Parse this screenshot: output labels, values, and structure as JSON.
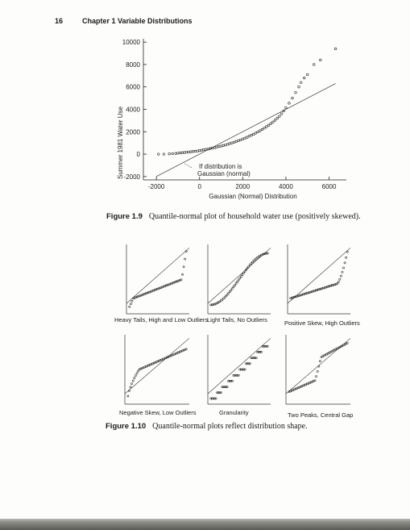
{
  "header": {
    "page_number": "16",
    "chapter": "Chapter 1  Variable Distributions"
  },
  "figure_1_9": {
    "label": "Figure 1.9",
    "caption": "Quantile-normal plot of household water use (positively skewed).",
    "ylabel": "Summer 1981 Water Use",
    "xlabel": "Gaussian (Normal) Distribution",
    "annotation_line1": "If distribution is",
    "annotation_line2": "Gaussian (normal)"
  },
  "figure_1_10": {
    "label": "Figure 1.10",
    "caption": "Quantile-normal plots reflect distribution shape.",
    "panels": [
      {
        "title": "Heavy Tails, High and Low Outliers"
      },
      {
        "title": "Light Tails, No Outliers"
      },
      {
        "title": "Positive Skew, High Outliers"
      },
      {
        "title": "Negative Skew, Low Outliers"
      },
      {
        "title": "Granularity"
      },
      {
        "title": "Two Peaks, Central Gap"
      }
    ]
  },
  "chart_data": [
    {
      "type": "scatter",
      "title": "",
      "xlabel": "Gaussian (Normal) Distribution",
      "ylabel": "Summer 1981 Water Use",
      "xlim": [
        -2600,
        6800
      ],
      "ylim": [
        -2300,
        10300
      ],
      "x_ticks": [
        -2000,
        0,
        2000,
        4000,
        6000
      ],
      "y_ticks": [
        -2000,
        0,
        2000,
        4000,
        6000,
        8000,
        10000
      ],
      "reference_line": {
        "x": [
          -2000,
          6300
        ],
        "y": [
          -2000,
          6300
        ]
      },
      "series": [
        {
          "points": [
            [
              -1900,
              0
            ],
            [
              -1650,
              0
            ],
            [
              -1400,
              20
            ],
            [
              -1250,
              40
            ],
            [
              -1100,
              60
            ],
            [
              -1000,
              90
            ],
            [
              -900,
              110
            ],
            [
              -800,
              130
            ],
            [
              -700,
              150
            ],
            [
              -600,
              170
            ],
            [
              -500,
              190
            ],
            [
              -400,
              210
            ],
            [
              -300,
              240
            ],
            [
              -200,
              260
            ],
            [
              -100,
              280
            ],
            [
              0,
              320
            ],
            [
              100,
              350
            ],
            [
              200,
              390
            ],
            [
              300,
              420
            ],
            [
              400,
              460
            ],
            [
              500,
              500
            ],
            [
              600,
              540
            ],
            [
              700,
              580
            ],
            [
              800,
              630
            ],
            [
              900,
              680
            ],
            [
              1000,
              720
            ],
            [
              1100,
              770
            ],
            [
              1200,
              820
            ],
            [
              1300,
              880
            ],
            [
              1400,
              940
            ],
            [
              1500,
              1000
            ],
            [
              1600,
              1060
            ],
            [
              1700,
              1130
            ],
            [
              1800,
              1200
            ],
            [
              1900,
              1270
            ],
            [
              2000,
              1350
            ],
            [
              2100,
              1430
            ],
            [
              2200,
              1510
            ],
            [
              2300,
              1600
            ],
            [
              2400,
              1690
            ],
            [
              2500,
              1780
            ],
            [
              2600,
              1880
            ],
            [
              2700,
              1980
            ],
            [
              2800,
              2090
            ],
            [
              2900,
              2200
            ],
            [
              3000,
              2320
            ],
            [
              3100,
              2450
            ],
            [
              3200,
              2580
            ],
            [
              3300,
              2720
            ],
            [
              3400,
              2870
            ],
            [
              3500,
              3030
            ],
            [
              3600,
              3200
            ],
            [
              3700,
              3380
            ],
            [
              3800,
              3600
            ],
            [
              3900,
              3850
            ],
            [
              4000,
              4150
            ],
            [
              4150,
              4550
            ],
            [
              4300,
              5000
            ],
            [
              4450,
              5500
            ],
            [
              4600,
              6000
            ],
            [
              4700,
              6400
            ],
            [
              4850,
              6800
            ],
            [
              5000,
              7100
            ],
            [
              5300,
              8000
            ],
            [
              5600,
              8400
            ],
            [
              6300,
              9400
            ]
          ]
        }
      ]
    }
  ]
}
